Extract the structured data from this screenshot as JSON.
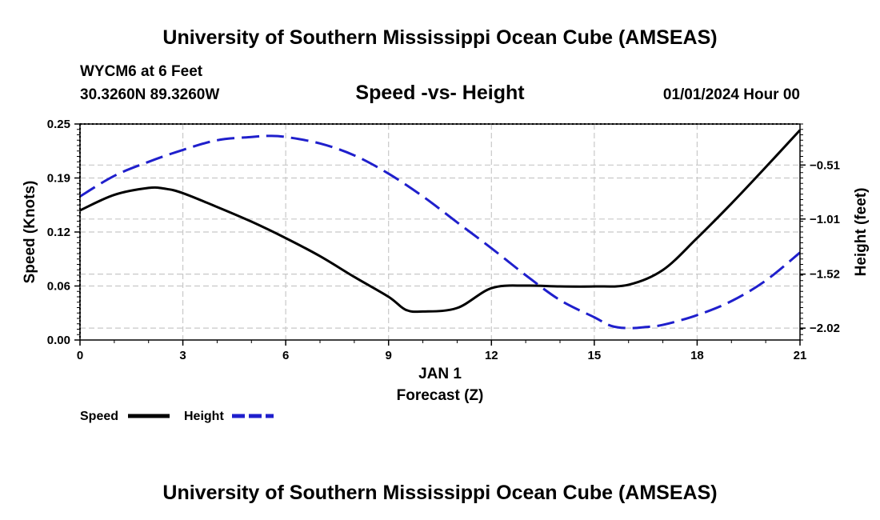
{
  "page": {
    "title_top": "University of Southern Mississippi Ocean Cube (AMSEAS)",
    "title_bottom": "University of Southern Mississippi Ocean Cube (AMSEAS)",
    "station": "WYCM6 at 6 Feet",
    "location": "30.3260N  89.3260W",
    "datetime": "01/01/2024 Hour 00"
  },
  "colors": {
    "speed": "#000000",
    "height": "#1f1fcc"
  },
  "chart_data": {
    "type": "line",
    "title": "Speed -vs- Height",
    "xlabel_date": "JAN 1",
    "xlabel": "Forecast (Z)",
    "ylabel_left": "Speed (Knots)",
    "ylabel_right": "Height (feet)",
    "xlim": [
      0,
      21
    ],
    "x_ticks": [
      0,
      3,
      6,
      9,
      12,
      15,
      18,
      21
    ],
    "x_tick_labels": [
      "0",
      "3",
      "6",
      "9",
      "12",
      "15",
      "18",
      "21"
    ],
    "ylim_left": [
      0,
      0.25
    ],
    "y_left_ticks": [
      0,
      0.0625,
      0.125,
      0.1875,
      0.25
    ],
    "y_left_tick_labels": [
      "0.00",
      "0.06",
      "0.12",
      "0.19",
      "0.25"
    ],
    "ylim_right": [
      -2.13,
      -0.13
    ],
    "y_right_ticks": [
      -2.02,
      -1.52,
      -1.01,
      -0.51
    ],
    "y_right_tick_labels": [
      "−2.02",
      "−1.52",
      "−1.01",
      "−0.51"
    ],
    "legend": [
      {
        "name": "Speed",
        "style": "solid"
      },
      {
        "name": "Height",
        "style": "dashed"
      }
    ],
    "series": [
      {
        "name": "Speed",
        "axis": "left",
        "x": [
          0,
          1,
          2,
          2.5,
          3,
          4,
          5,
          6,
          7,
          8,
          9,
          9.5,
          10,
          11,
          12,
          13,
          14,
          15,
          16,
          17,
          18,
          19,
          20,
          21
        ],
        "values": [
          0.15,
          0.168,
          0.176,
          0.175,
          0.17,
          0.154,
          0.137,
          0.118,
          0.097,
          0.073,
          0.05,
          0.035,
          0.033,
          0.037,
          0.06,
          0.063,
          0.062,
          0.062,
          0.064,
          0.081,
          0.118,
          0.158,
          0.2,
          0.243
        ]
      },
      {
        "name": "Height",
        "axis": "right",
        "x": [
          0,
          1,
          2,
          3,
          4,
          5,
          5.5,
          6,
          7,
          8,
          9,
          10,
          11,
          12,
          13,
          14,
          15,
          15.5,
          16,
          16.5,
          17,
          18,
          19,
          20,
          21
        ],
        "values": [
          -0.8,
          -0.61,
          -0.48,
          -0.37,
          -0.28,
          -0.25,
          -0.24,
          -0.25,
          -0.31,
          -0.42,
          -0.59,
          -0.8,
          -1.04,
          -1.28,
          -1.53,
          -1.76,
          -1.92,
          -2.0,
          -2.02,
          -2.01,
          -1.99,
          -1.9,
          -1.77,
          -1.58,
          -1.32
        ]
      }
    ]
  }
}
